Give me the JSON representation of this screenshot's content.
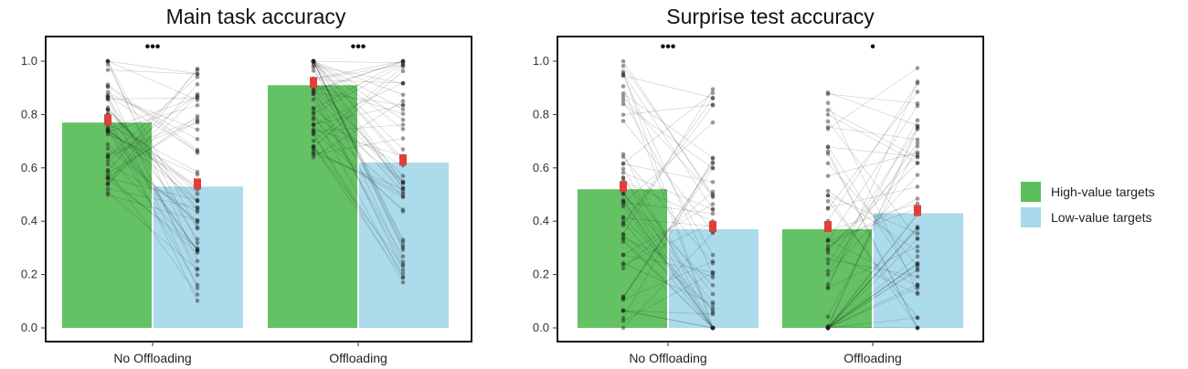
{
  "colors": {
    "high_value": "#5cbf5c",
    "low_value": "#a8d9ea",
    "mean_marker": "#e0403a",
    "points": "#222222"
  },
  "legend": {
    "items": [
      {
        "label": "High-value targets",
        "color": "#5cbf5c"
      },
      {
        "label": "Low-value targets",
        "color": "#a8d9ea"
      }
    ]
  },
  "chart_data": [
    {
      "type": "bar",
      "title": "Main task accuracy",
      "xlabel": "",
      "ylabel": "",
      "ylim": [
        0,
        1.05
      ],
      "yticks": [
        "0.0",
        "0.2",
        "0.4",
        "0.6",
        "0.8",
        "1.0"
      ],
      "categories": [
        "No Offloading",
        "Offloading"
      ],
      "series": [
        {
          "name": "High-value targets",
          "values": [
            0.77,
            0.91
          ]
        },
        {
          "name": "Low-value targets",
          "values": [
            0.53,
            0.62
          ]
        }
      ],
      "significance": [
        "•••",
        "•••"
      ],
      "grid": false
    },
    {
      "type": "bar",
      "title": "Surprise test accuracy",
      "xlabel": "",
      "ylabel": "",
      "ylim": [
        0,
        1.05
      ],
      "yticks": [
        "0.0",
        "0.2",
        "0.4",
        "0.6",
        "0.8",
        "1.0"
      ],
      "categories": [
        "No Offloading",
        "Offloading"
      ],
      "series": [
        {
          "name": "High-value targets",
          "values": [
            0.52,
            0.37
          ]
        },
        {
          "name": "Low-value targets",
          "values": [
            0.37,
            0.43
          ]
        }
      ],
      "significance": [
        "•••",
        "•"
      ],
      "grid": false
    }
  ]
}
